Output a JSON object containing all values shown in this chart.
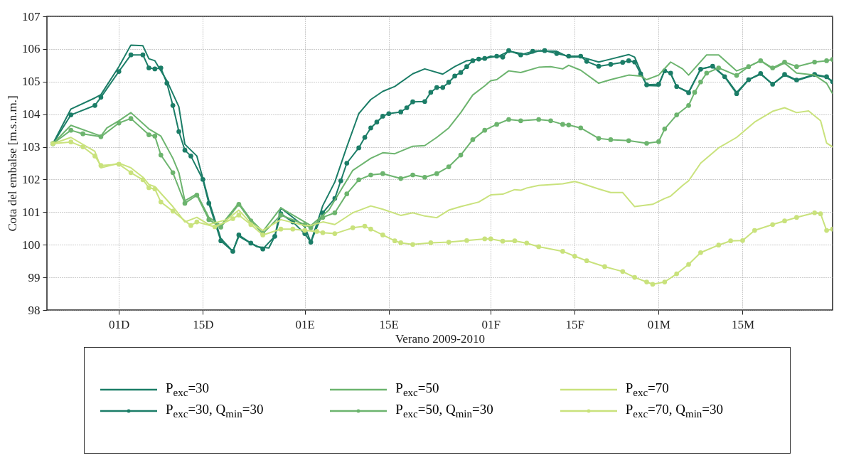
{
  "chart_data": {
    "type": "line",
    "xlabel": "Verano 2009-2010",
    "ylabel": "Cota del embalse [m.s.n.m.]",
    "xlim": [
      "2009-11-19",
      "2010-03-30"
    ],
    "xticks": [
      {
        "value": "2009-12-01",
        "label": "01D"
      },
      {
        "value": "2009-12-15",
        "label": "15D"
      },
      {
        "value": "2010-01-01",
        "label": "01E"
      },
      {
        "value": "2010-01-15",
        "label": "15E"
      },
      {
        "value": "2010-02-01",
        "label": "01F"
      },
      {
        "value": "2010-02-15",
        "label": "15F"
      },
      {
        "value": "2010-03-01",
        "label": "01M"
      },
      {
        "value": "2010-03-15",
        "label": "15M"
      }
    ],
    "ylim": [
      98,
      107
    ],
    "yticks": [
      98,
      99,
      100,
      101,
      102,
      103,
      104,
      105,
      106,
      107
    ],
    "grid": true,
    "legend": "bottom",
    "line_style": "solid",
    "series": [
      {
        "name": "P$_{exc}$=30",
        "color": "#1b7d67",
        "marker": "none",
        "x": [
          "2009-11-20",
          "2009-11-23",
          "2009-11-27",
          "2009-11-28",
          "2009-12-01",
          "2009-12-03",
          "2009-12-05",
          "2009-12-06",
          "2009-12-07",
          "2009-12-09",
          "2009-12-11",
          "2009-12-12",
          "2009-12-14",
          "2009-12-16",
          "2009-12-18",
          "2009-12-20",
          "2009-12-21",
          "2009-12-24",
          "2009-12-26",
          "2009-12-27",
          "2009-12-28",
          "2009-12-30",
          "2010-01-01",
          "2010-01-02",
          "2010-01-04",
          "2010-01-06",
          "2010-01-08",
          "2010-01-10",
          "2010-01-12",
          "2010-01-14",
          "2010-01-16",
          "2010-01-19",
          "2010-01-21",
          "2010-01-24",
          "2010-01-26",
          "2010-01-28",
          "2010-01-31",
          "2010-02-01",
          "2010-02-02",
          "2010-02-04",
          "2010-02-07",
          "2010-02-09",
          "2010-02-12",
          "2010-02-14",
          "2010-02-16",
          "2010-02-19",
          "2010-02-21",
          "2010-02-24",
          "2010-02-25",
          "2010-02-26",
          "2010-02-27",
          "2010-03-01",
          "2010-03-02",
          "2010-03-03",
          "2010-03-04",
          "2010-03-06",
          "2010-03-08",
          "2010-03-10",
          "2010-03-12",
          "2010-03-14",
          "2010-03-16",
          "2010-03-18",
          "2010-03-20",
          "2010-03-22",
          "2010-03-24",
          "2010-03-27",
          "2010-03-29",
          "2010-03-30"
        ],
        "values": [
          103.1,
          104.16,
          104.5,
          104.6,
          105.46,
          106.12,
          106.1,
          105.7,
          105.64,
          105.03,
          104.23,
          103.08,
          102.72,
          101.35,
          100.19,
          99.8,
          100.26,
          99.94,
          99.9,
          100.26,
          101.13,
          100.84,
          100.55,
          100.08,
          101.2,
          101.92,
          103.0,
          104.02,
          104.45,
          104.7,
          104.85,
          105.24,
          105.39,
          105.23,
          105.46,
          105.64,
          105.71,
          105.78,
          105.75,
          105.93,
          105.83,
          105.94,
          105.93,
          105.75,
          105.76,
          105.6,
          105.69,
          105.83,
          105.75,
          105.31,
          104.88,
          104.87,
          105.35,
          105.24,
          104.85,
          104.68,
          105.39,
          105.47,
          105.17,
          104.67,
          105.06,
          105.23,
          104.92,
          105.2,
          105.03,
          105.2,
          105.13,
          104.99
        ]
      },
      {
        "name": "P$_{exc}$=30, Q$_{min}$=30",
        "color": "#1b7d67",
        "marker": "circle",
        "x": [
          "2009-11-20",
          "2009-11-23",
          "2009-11-27",
          "2009-11-28",
          "2009-12-01",
          "2009-12-03",
          "2009-12-05",
          "2009-12-06",
          "2009-12-07",
          "2009-12-08",
          "2009-12-09",
          "2009-12-10",
          "2009-12-11",
          "2009-12-12",
          "2009-12-13",
          "2009-12-15",
          "2009-12-16",
          "2009-12-18",
          "2009-12-20",
          "2009-12-21",
          "2009-12-23",
          "2009-12-25",
          "2009-12-27",
          "2009-12-28",
          "2009-12-30",
          "2010-01-01",
          "2010-01-02",
          "2010-01-04",
          "2010-01-06",
          "2010-01-07",
          "2010-01-08",
          "2010-01-10",
          "2010-01-11",
          "2010-01-12",
          "2010-01-13",
          "2010-01-14",
          "2010-01-15",
          "2010-01-17",
          "2010-01-18",
          "2010-01-19",
          "2010-01-21",
          "2010-01-22",
          "2010-01-23",
          "2010-01-24",
          "2010-01-25",
          "2010-01-26",
          "2010-01-27",
          "2010-01-28",
          "2010-01-29",
          "2010-01-30",
          "2010-01-31",
          "2010-02-02",
          "2010-02-03",
          "2010-02-04",
          "2010-02-06",
          "2010-02-08",
          "2010-02-10",
          "2010-02-12",
          "2010-02-14",
          "2010-02-16",
          "2010-02-17",
          "2010-02-19",
          "2010-02-21",
          "2010-02-23",
          "2010-02-24",
          "2010-02-25",
          "2010-02-26",
          "2010-02-27",
          "2010-03-01",
          "2010-03-02",
          "2010-03-03",
          "2010-03-04",
          "2010-03-06",
          "2010-03-08",
          "2010-03-10",
          "2010-03-12",
          "2010-03-14",
          "2010-03-16",
          "2010-03-18",
          "2010-03-20",
          "2010-03-22",
          "2010-03-24",
          "2010-03-27",
          "2010-03-29",
          "2010-03-30"
        ],
        "values": [
          103.1,
          103.98,
          104.27,
          104.52,
          105.31,
          105.82,
          105.82,
          105.42,
          105.39,
          105.42,
          104.95,
          104.27,
          103.47,
          102.9,
          102.72,
          102.0,
          101.27,
          100.12,
          99.8,
          100.3,
          100.05,
          99.87,
          100.26,
          100.95,
          100.7,
          100.34,
          100.08,
          100.98,
          101.42,
          101.96,
          102.5,
          102.97,
          103.29,
          103.58,
          103.76,
          103.94,
          104.02,
          104.07,
          104.2,
          104.38,
          104.39,
          104.67,
          104.82,
          104.82,
          104.98,
          105.17,
          105.28,
          105.46,
          105.64,
          105.69,
          105.71,
          105.78,
          105.75,
          105.95,
          105.82,
          105.93,
          105.95,
          105.86,
          105.78,
          105.78,
          105.62,
          105.47,
          105.53,
          105.59,
          105.64,
          105.6,
          105.24,
          104.9,
          104.92,
          105.33,
          105.26,
          104.85,
          104.66,
          105.38,
          105.47,
          105.15,
          104.63,
          105.06,
          105.25,
          104.92,
          105.22,
          105.05,
          105.22,
          105.15,
          105.0
        ]
      },
      {
        "name": "P$_{exc}$=50",
        "color": "#6cb46e",
        "marker": "none",
        "x": [
          "2009-11-20",
          "2009-11-23",
          "2009-11-28",
          "2009-11-29",
          "2009-12-01",
          "2009-12-03",
          "2009-12-06",
          "2009-12-08",
          "2009-12-10",
          "2009-12-11",
          "2009-12-12",
          "2009-12-14",
          "2009-12-16",
          "2009-12-18",
          "2009-12-21",
          "2009-12-23",
          "2009-12-25",
          "2009-12-28",
          "2009-12-30",
          "2010-01-02",
          "2010-01-05",
          "2010-01-07",
          "2010-01-09",
          "2010-01-12",
          "2010-01-14",
          "2010-01-16",
          "2010-01-19",
          "2010-01-21",
          "2010-01-23",
          "2010-01-25",
          "2010-01-27",
          "2010-01-29",
          "2010-01-31",
          "2010-02-01",
          "2010-02-02",
          "2010-02-04",
          "2010-02-06",
          "2010-02-09",
          "2010-02-11",
          "2010-02-13",
          "2010-02-14",
          "2010-02-16",
          "2010-02-19",
          "2010-02-21",
          "2010-02-24",
          "2010-02-26",
          "2010-02-27",
          "2010-03-01",
          "2010-03-03",
          "2010-03-05",
          "2010-03-06",
          "2010-03-09",
          "2010-03-11",
          "2010-03-14",
          "2010-03-16",
          "2010-03-18",
          "2010-03-20",
          "2010-03-22",
          "2010-03-24",
          "2010-03-27",
          "2010-03-29",
          "2010-03-30"
        ],
        "values": [
          103.1,
          103.66,
          103.33,
          103.58,
          103.8,
          104.05,
          103.55,
          103.33,
          102.65,
          102.21,
          101.35,
          101.56,
          100.84,
          100.59,
          101.28,
          100.77,
          100.41,
          101.13,
          100.91,
          100.59,
          101.06,
          101.67,
          102.28,
          102.65,
          102.82,
          102.79,
          103.02,
          103.04,
          103.29,
          103.58,
          104.05,
          104.59,
          104.87,
          105.03,
          105.06,
          105.33,
          105.28,
          105.44,
          105.46,
          105.39,
          105.5,
          105.35,
          104.95,
          105.06,
          105.2,
          105.17,
          105.06,
          105.2,
          105.6,
          105.39,
          105.2,
          105.82,
          105.82,
          105.33,
          105.46,
          105.64,
          105.39,
          105.57,
          105.26,
          105.2,
          104.95,
          104.63
        ]
      },
      {
        "name": "P$_{exc}$=50, Q$_{min}$=30",
        "color": "#6cb46e",
        "marker": "circle",
        "x": [
          "2009-11-20",
          "2009-11-23",
          "2009-11-25",
          "2009-11-28",
          "2009-12-01",
          "2009-12-03",
          "2009-12-06",
          "2009-12-07",
          "2009-12-08",
          "2009-12-10",
          "2009-12-12",
          "2009-12-14",
          "2009-12-16",
          "2009-12-18",
          "2009-12-21",
          "2009-12-23",
          "2009-12-25",
          "2009-12-28",
          "2010-01-01",
          "2010-01-02",
          "2010-01-04",
          "2010-01-06",
          "2010-01-08",
          "2010-01-10",
          "2010-01-12",
          "2010-01-14",
          "2010-01-17",
          "2010-01-19",
          "2010-01-21",
          "2010-01-23",
          "2010-01-25",
          "2010-01-27",
          "2010-01-29",
          "2010-01-31",
          "2010-02-02",
          "2010-02-04",
          "2010-02-06",
          "2010-02-09",
          "2010-02-11",
          "2010-02-13",
          "2010-02-14",
          "2010-02-16",
          "2010-02-19",
          "2010-02-21",
          "2010-02-24",
          "2010-02-27",
          "2010-03-01",
          "2010-03-02",
          "2010-03-04",
          "2010-03-06",
          "2010-03-07",
          "2010-03-08",
          "2010-03-09",
          "2010-03-11",
          "2010-03-14",
          "2010-03-16",
          "2010-03-18",
          "2010-03-20",
          "2010-03-22",
          "2010-03-24",
          "2010-03-27",
          "2010-03-29",
          "2010-03-30"
        ],
        "values": [
          103.1,
          103.51,
          103.4,
          103.31,
          103.73,
          103.87,
          103.37,
          103.33,
          102.75,
          102.21,
          101.27,
          101.52,
          100.77,
          100.54,
          101.24,
          100.73,
          100.34,
          100.91,
          100.62,
          100.52,
          100.84,
          100.98,
          101.56,
          101.99,
          102.14,
          102.18,
          102.03,
          102.14,
          102.07,
          102.18,
          102.39,
          102.75,
          103.22,
          103.51,
          103.69,
          103.84,
          103.8,
          103.84,
          103.8,
          103.69,
          103.67,
          103.58,
          103.26,
          103.22,
          103.19,
          103.11,
          103.16,
          103.55,
          103.98,
          104.27,
          104.67,
          104.99,
          105.26,
          105.42,
          105.19,
          105.46,
          105.64,
          105.42,
          105.6,
          105.46,
          105.6,
          105.64,
          105.68
        ]
      },
      {
        "name": "P$_{exc}$=70",
        "color": "#c9e27c",
        "marker": "none",
        "x": [
          "2009-11-20",
          "2009-11-23",
          "2009-11-27",
          "2009-11-28",
          "2009-12-01",
          "2009-12-03",
          "2009-12-05",
          "2009-12-06",
          "2009-12-07",
          "2009-12-10",
          "2009-12-12",
          "2009-12-14",
          "2009-12-16",
          "2009-12-19",
          "2009-12-21",
          "2009-12-23",
          "2009-12-25",
          "2009-12-28",
          "2010-01-01",
          "2010-01-02",
          "2010-01-04",
          "2010-01-06",
          "2010-01-09",
          "2010-01-12",
          "2010-01-14",
          "2010-01-17",
          "2010-01-19",
          "2010-01-21",
          "2010-01-23",
          "2010-01-25",
          "2010-01-27",
          "2010-01-30",
          "2010-01-31",
          "2010-02-01",
          "2010-02-03",
          "2010-02-05",
          "2010-02-06",
          "2010-02-07",
          "2010-02-09",
          "2010-02-13",
          "2010-02-15",
          "2010-02-16",
          "2010-02-19",
          "2010-02-21",
          "2010-02-23",
          "2010-02-25",
          "2010-02-28",
          "2010-03-02",
          "2010-03-03",
          "2010-03-05",
          "2010-03-06",
          "2010-03-08",
          "2010-03-11",
          "2010-03-14",
          "2010-03-17",
          "2010-03-20",
          "2010-03-22",
          "2010-03-24",
          "2010-03-26",
          "2010-03-28",
          "2010-03-29",
          "2010-03-30"
        ],
        "values": [
          103.1,
          103.29,
          102.86,
          102.36,
          102.5,
          102.36,
          102.07,
          101.85,
          101.78,
          101.17,
          100.7,
          100.84,
          100.62,
          100.77,
          101.06,
          100.66,
          100.44,
          100.77,
          100.59,
          100.59,
          100.7,
          100.62,
          100.98,
          101.19,
          101.09,
          100.9,
          100.98,
          100.88,
          100.83,
          101.06,
          101.17,
          101.31,
          101.42,
          101.53,
          101.55,
          101.69,
          101.67,
          101.74,
          101.82,
          101.87,
          101.94,
          101.89,
          101.71,
          101.6,
          101.6,
          101.17,
          101.24,
          101.42,
          101.49,
          101.82,
          101.96,
          102.5,
          102.97,
          103.29,
          103.76,
          104.09,
          104.2,
          104.05,
          104.1,
          103.8,
          103.12,
          103.0
        ]
      },
      {
        "name": "P$_{exc}$=70, Q$_{min}$=30",
        "color": "#c9e27c",
        "marker": "circle",
        "x": [
          "2009-11-20",
          "2009-11-23",
          "2009-11-25",
          "2009-11-27",
          "2009-11-28",
          "2009-12-01",
          "2009-12-03",
          "2009-12-05",
          "2009-12-06",
          "2009-12-07",
          "2009-12-08",
          "2009-12-10",
          "2009-12-13",
          "2009-12-14",
          "2009-12-17",
          "2009-12-20",
          "2009-12-21",
          "2009-12-23",
          "2009-12-25",
          "2009-12-28",
          "2009-12-30",
          "2010-01-01",
          "2010-01-03",
          "2010-01-04",
          "2010-01-06",
          "2010-01-09",
          "2010-01-11",
          "2010-01-12",
          "2010-01-14",
          "2010-01-16",
          "2010-01-17",
          "2010-01-19",
          "2010-01-22",
          "2010-01-25",
          "2010-01-28",
          "2010-01-31",
          "2010-02-01",
          "2010-02-03",
          "2010-02-05",
          "2010-02-07",
          "2010-02-09",
          "2010-02-13",
          "2010-02-15",
          "2010-02-17",
          "2010-02-20",
          "2010-02-23",
          "2010-02-25",
          "2010-02-27",
          "2010-02-28",
          "2010-03-02",
          "2010-03-04",
          "2010-03-06",
          "2010-03-08",
          "2010-03-11",
          "2010-03-13",
          "2010-03-15",
          "2010-03-17",
          "2010-03-20",
          "2010-03-22",
          "2010-03-24",
          "2010-03-27",
          "2010-03-28",
          "2010-03-29",
          "2010-03-30"
        ],
        "values": [
          103.1,
          103.15,
          103.0,
          102.72,
          102.43,
          102.47,
          102.21,
          101.99,
          101.75,
          101.71,
          101.31,
          101.03,
          100.59,
          100.7,
          100.55,
          100.8,
          100.91,
          100.62,
          100.3,
          100.48,
          100.48,
          100.44,
          100.41,
          100.37,
          100.34,
          100.52,
          100.57,
          100.48,
          100.3,
          100.12,
          100.06,
          100.01,
          100.06,
          100.08,
          100.13,
          100.18,
          100.18,
          100.11,
          100.12,
          100.05,
          99.94,
          99.8,
          99.65,
          99.51,
          99.33,
          99.18,
          99.0,
          98.86,
          98.79,
          98.86,
          99.11,
          99.4,
          99.76,
          99.99,
          100.12,
          100.13,
          100.44,
          100.62,
          100.73,
          100.84,
          100.98,
          100.95,
          100.44,
          100.48
        ]
      }
    ]
  }
}
